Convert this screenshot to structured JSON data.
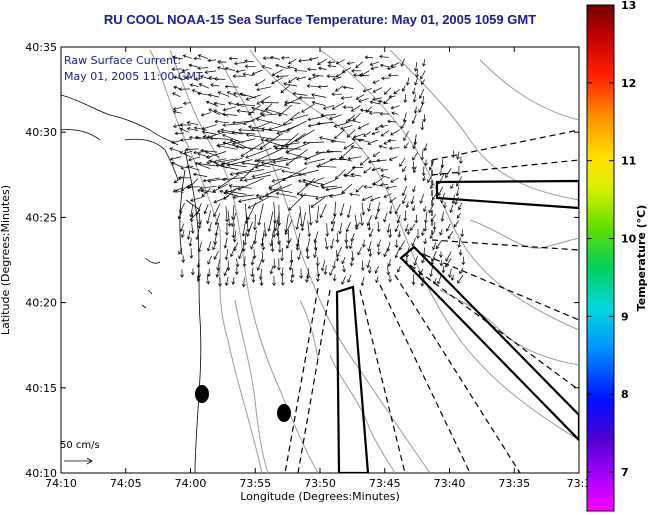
{
  "title": "RU COOL  NOAA-15  Sea Surface Temperature:  May 01, 2005 1059 GMT",
  "annotation": {
    "line1": "Raw Surface Current:",
    "line2": "May 01, 2005 11:00 GMT"
  },
  "scale_arrow": {
    "label": "50 cm/s"
  },
  "axes": {
    "x_label": "Longitude (Degrees:Minutes)",
    "y_label": "Latitude (Degrees:Minutes)",
    "x_ticks": [
      "74:10",
      "74:05",
      "74:00",
      "73:55",
      "73:50",
      "73:45",
      "73:40",
      "73:35",
      "73:3"
    ],
    "y_ticks": [
      "40:35",
      "40:30",
      "40:25",
      "40:20",
      "40:15",
      "40:10"
    ],
    "x_range_min": [
      -74.1667,
      -73.5
    ],
    "y_range_min": [
      40.1667,
      40.5833
    ]
  },
  "colorbar": {
    "title": "Temperature (°C)",
    "ticks": [
      "13",
      "12",
      "11",
      "10",
      "9",
      "8",
      "7"
    ],
    "range": [
      6.5,
      13
    ],
    "colors": [
      "#ff00ff",
      "#6a00c8",
      "#0010ff",
      "#00a0ff",
      "#00e0c0",
      "#00d040",
      "#a0e000",
      "#ffff00",
      "#ffb000",
      "#ff4000",
      "#d00000",
      "#700000"
    ]
  },
  "colors": {
    "title": "#1a1aa0",
    "coast": "#000000",
    "bathymetry": "#999999",
    "vectors": "#000000"
  }
}
